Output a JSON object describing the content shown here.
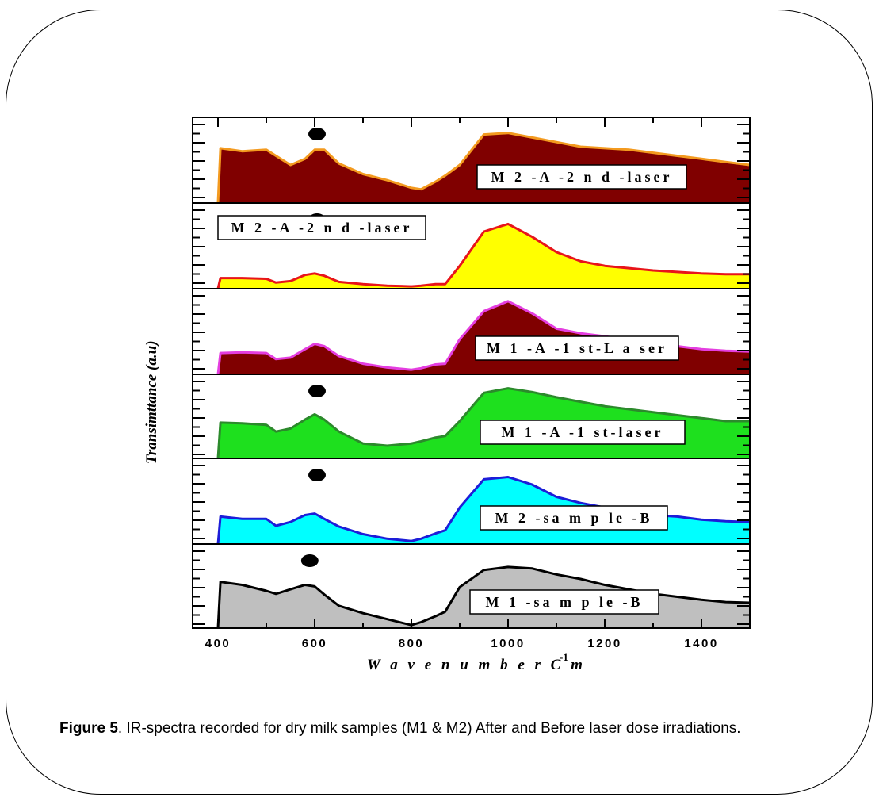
{
  "caption": {
    "figure_label": "Figure 5",
    "text": ". IR-spectra recorded for dry milk samples (M1 & M2) After and Before laser dose irradiations."
  },
  "chart_data": {
    "type": "area",
    "xlim": [
      400,
      1500
    ],
    "x_ticks": [
      "400",
      "600",
      "800",
      "1000",
      "1200",
      "1400"
    ],
    "xlabel": "W a v e n u m b e r   C m",
    "xlabel_sup": "-1",
    "ylabel": "Transimttance      (a.u)",
    "x": [
      400,
      405,
      450,
      500,
      520,
      550,
      580,
      600,
      620,
      650,
      700,
      750,
      800,
      820,
      850,
      870,
      900,
      950,
      1000,
      1050,
      1100,
      1150,
      1200,
      1250,
      1300,
      1350,
      1400,
      1450,
      1500
    ],
    "panels": [
      {
        "label": "M 2 -A -2 n d -laser",
        "fill": "#800000",
        "stroke": "#f39a1f",
        "label_box": "right",
        "marker_x": 600,
        "y": [
          0,
          0.72,
          0.68,
          0.7,
          0.62,
          0.5,
          0.58,
          0.7,
          0.7,
          0.52,
          0.38,
          0.3,
          0.2,
          0.18,
          0.28,
          0.36,
          0.5,
          0.9,
          0.92,
          0.86,
          0.8,
          0.74,
          0.72,
          0.7,
          0.66,
          0.62,
          0.58,
          0.54,
          0.5
        ]
      },
      {
        "label": "M 2 -A -2 n d -laser",
        "fill": "#ffff00",
        "stroke": "#e8141a",
        "label_box": "left",
        "marker_x": 600,
        "y": [
          0,
          0.14,
          0.14,
          0.13,
          0.08,
          0.1,
          0.18,
          0.2,
          0.17,
          0.09,
          0.06,
          0.04,
          0.03,
          0.04,
          0.06,
          0.06,
          0.3,
          0.75,
          0.85,
          0.68,
          0.48,
          0.36,
          0.3,
          0.27,
          0.24,
          0.22,
          0.2,
          0.19,
          0.19
        ]
      },
      {
        "label": "M 1 -A -1 st-L a ser",
        "fill": "#800000",
        "stroke": "#e43ee0",
        "label_box": "right",
        "marker_x": null,
        "y": [
          0,
          0.28,
          0.29,
          0.28,
          0.2,
          0.22,
          0.33,
          0.4,
          0.37,
          0.24,
          0.14,
          0.09,
          0.06,
          0.08,
          0.13,
          0.14,
          0.46,
          0.83,
          0.96,
          0.8,
          0.6,
          0.54,
          0.5,
          0.45,
          0.4,
          0.37,
          0.33,
          0.31,
          0.3
        ]
      },
      {
        "label": "M 1 -A -1 st-laser",
        "fill": "#1ee01e",
        "stroke": "#2c8a2c",
        "label_box": "right",
        "marker_x": 600,
        "y": [
          0,
          0.48,
          0.47,
          0.45,
          0.36,
          0.4,
          0.52,
          0.59,
          0.52,
          0.36,
          0.2,
          0.17,
          0.2,
          0.23,
          0.28,
          0.3,
          0.5,
          0.88,
          0.94,
          0.89,
          0.82,
          0.76,
          0.7,
          0.66,
          0.62,
          0.58,
          0.54,
          0.5,
          0.5
        ]
      },
      {
        "label": "M 2 -sa m p le -B",
        "fill": "#00ffff",
        "stroke": "#1d1dd8",
        "label_box": "right",
        "marker_x": 600,
        "y": [
          0,
          0.36,
          0.33,
          0.33,
          0.24,
          0.29,
          0.38,
          0.4,
          0.33,
          0.23,
          0.13,
          0.07,
          0.04,
          0.07,
          0.14,
          0.18,
          0.48,
          0.85,
          0.88,
          0.78,
          0.62,
          0.54,
          0.48,
          0.42,
          0.38,
          0.36,
          0.32,
          0.3,
          0.29
        ]
      },
      {
        "label": "M 1 -sa m p le -B",
        "fill": "#bfbfbf",
        "stroke": "#000000",
        "label_box": "right",
        "marker_x": 585,
        "y": [
          0,
          0.62,
          0.58,
          0.5,
          0.46,
          0.52,
          0.58,
          0.56,
          0.45,
          0.3,
          0.2,
          0.12,
          0.04,
          0.08,
          0.16,
          0.22,
          0.55,
          0.78,
          0.82,
          0.8,
          0.72,
          0.66,
          0.58,
          0.52,
          0.46,
          0.42,
          0.38,
          0.35,
          0.34
        ]
      }
    ]
  }
}
